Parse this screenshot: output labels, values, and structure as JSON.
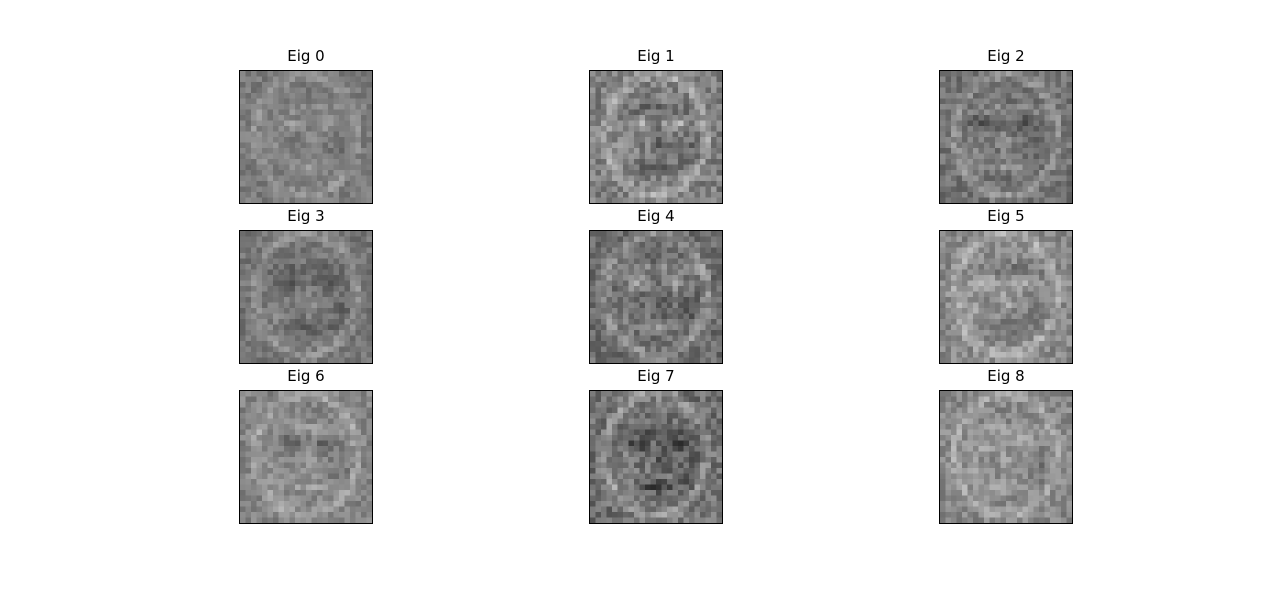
{
  "figure": {
    "background": "#ffffff",
    "colormap": "gray",
    "grid": {
      "rows": 3,
      "cols": 3
    },
    "panels": [
      {
        "title": "Eig 0",
        "seed": 11,
        "contrast": 0.55,
        "bias": 0.0
      },
      {
        "title": "Eig 1",
        "seed": 23,
        "contrast": 0.85,
        "bias": 0.02
      },
      {
        "title": "Eig 2",
        "seed": 37,
        "contrast": 0.7,
        "bias": -0.03
      },
      {
        "title": "Eig 3",
        "seed": 41,
        "contrast": 0.6,
        "bias": -0.02
      },
      {
        "title": "Eig 4",
        "seed": 53,
        "contrast": 0.8,
        "bias": -0.05
      },
      {
        "title": "Eig 5",
        "seed": 67,
        "contrast": 0.75,
        "bias": 0.06
      },
      {
        "title": "Eig 6",
        "seed": 71,
        "contrast": 0.65,
        "bias": 0.04
      },
      {
        "title": "Eig 7",
        "seed": 83,
        "contrast": 0.9,
        "bias": -0.04
      },
      {
        "title": "Eig 8",
        "seed": 97,
        "contrast": 0.7,
        "bias": 0.05
      }
    ]
  }
}
